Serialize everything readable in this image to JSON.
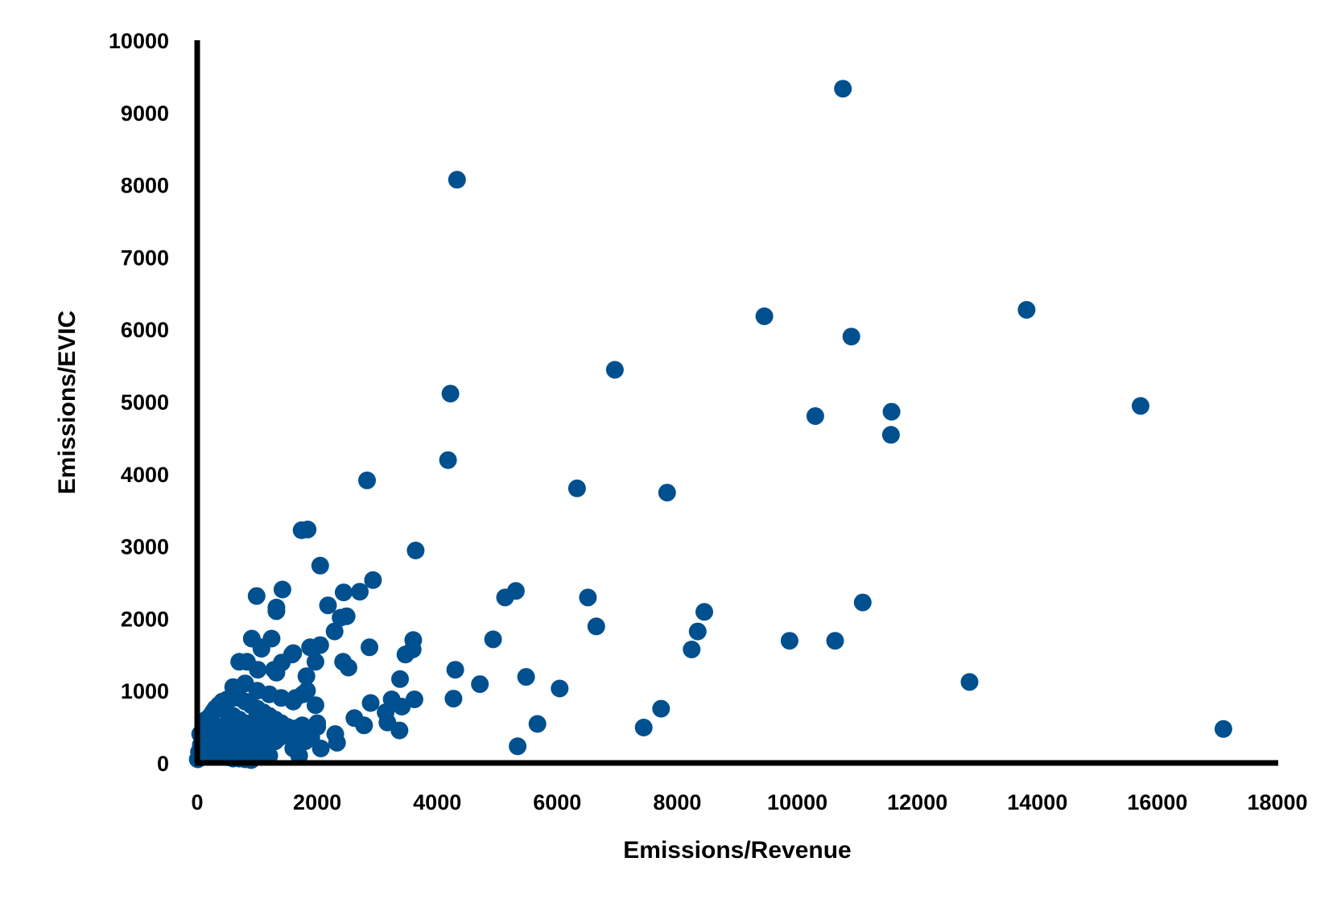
{
  "chart_data": {
    "type": "scatter",
    "title": "",
    "xlabel": "Emissions/Revenue",
    "ylabel": "Emissions/EVIC",
    "xlim": [
      0,
      18000
    ],
    "ylim": [
      0,
      10000
    ],
    "x_ticks": [
      "0",
      "2000",
      "4000",
      "6000",
      "8000",
      "10000",
      "12000",
      "14000",
      "16000",
      "18000"
    ],
    "y_ticks": [
      "0",
      "1000",
      "2000",
      "3000",
      "4000",
      "5000",
      "6000",
      "7000",
      "8000",
      "9000",
      "10000"
    ],
    "grid": false,
    "legend": "none",
    "marker_color": "#00508F",
    "axis_color": "#000000",
    "series": [
      {
        "x": [
          10760,
          4330,
          13820,
          9450,
          10900,
          6960,
          4220,
          11570,
          15720,
          10300,
          11560,
          4180,
          2830,
          6330,
          7830,
          1740,
          1840,
          3640,
          2050,
          2930,
          1420,
          990,
          2710,
          2440,
          1320,
          2180,
          2490,
          1320,
          2290,
          2050,
          1880,
          910,
          1240,
          1600,
          1070,
          1970,
          1280,
          1410,
          1820,
          1640,
          1760,
          1830,
          1010,
          1970,
          1320,
          1070,
          1580,
          5310,
          5130,
          4930,
          3590,
          3470,
          3380,
          3240,
          3410,
          4300,
          4270,
          4710,
          5480,
          5670,
          5340,
          2890,
          2620,
          2780,
          2520,
          2430,
          2390,
          2330,
          2060,
          3600,
          3620,
          3170,
          3140,
          3370,
          2870,
          6510,
          6650,
          6040,
          8450,
          8340,
          8240,
          7730,
          7440,
          9870,
          10630,
          11090,
          12870,
          17100,
          700,
          830,
          600,
          500,
          420,
          360,
          300,
          260,
          220,
          180,
          140,
          100,
          60,
          30,
          10,
          700,
          800,
          900,
          1000,
          1100,
          1200,
          1300,
          1400,
          1500,
          500,
          600,
          700,
          800,
          900,
          1000,
          1100,
          1200,
          1300,
          400,
          500,
          600,
          700,
          800,
          900,
          1000,
          1100,
          1200,
          300,
          400,
          500,
          600,
          700,
          800,
          900,
          1000,
          200,
          300,
          400,
          500,
          600,
          700,
          800,
          900,
          150,
          250,
          350,
          450,
          550,
          650,
          750,
          100,
          200,
          300,
          400,
          500,
          600,
          50,
          150,
          250,
          350,
          450,
          1900,
          1800,
          1700,
          1600,
          1500,
          1400,
          1300,
          1200,
          1100,
          1000,
          2000,
          1900,
          1750,
          1650,
          1550,
          1450,
          1350,
          600,
          800,
          1000,
          1200,
          1400,
          1600,
          1700,
          2300,
          2000
        ],
        "y": [
          9330,
          8070,
          6270,
          6180,
          5900,
          5440,
          5110,
          4860,
          4940,
          4800,
          4540,
          4190,
          3910,
          3800,
          3740,
          3220,
          3230,
          2940,
          2730,
          2530,
          2400,
          2310,
          2370,
          2360,
          2150,
          2180,
          2030,
          2100,
          1820,
          1630,
          1600,
          1720,
          1720,
          1520,
          1580,
          1400,
          1290,
          1390,
          1200,
          900,
          950,
          1000,
          1290,
          800,
          1250,
          1600,
          1500,
          2380,
          2290,
          1710,
          1570,
          1500,
          1160,
          880,
          780,
          1290,
          890,
          1090,
          1190,
          540,
          230,
          830,
          620,
          520,
          1320,
          1400,
          2010,
          280,
          200,
          1700,
          880,
          560,
          700,
          450,
          1600,
          2290,
          1890,
          1030,
          2090,
          1820,
          1570,
          750,
          490,
          1690,
          1690,
          2220,
          1120,
          470,
          1400,
          1400,
          900,
          880,
          850,
          800,
          750,
          700,
          650,
          550,
          450,
          350,
          250,
          150,
          50,
          900,
          850,
          800,
          750,
          700,
          650,
          600,
          550,
          500,
          700,
          650,
          600,
          550,
          500,
          450,
          400,
          350,
          300,
          500,
          450,
          400,
          350,
          300,
          250,
          200,
          150,
          100,
          300,
          280,
          260,
          240,
          220,
          200,
          180,
          160,
          150,
          130,
          110,
          90,
          70,
          60,
          50,
          40,
          600,
          550,
          500,
          450,
          400,
          350,
          300,
          250,
          200,
          150,
          100,
          80,
          60,
          400,
          350,
          300,
          250,
          200,
          350,
          300,
          250,
          200,
          400,
          450,
          500,
          550,
          600,
          650,
          500,
          450,
          520,
          480,
          420,
          380,
          340,
          1050,
          1100,
          1000,
          950,
          900,
          850,
          100,
          400,
          550
        ]
      }
    ]
  }
}
